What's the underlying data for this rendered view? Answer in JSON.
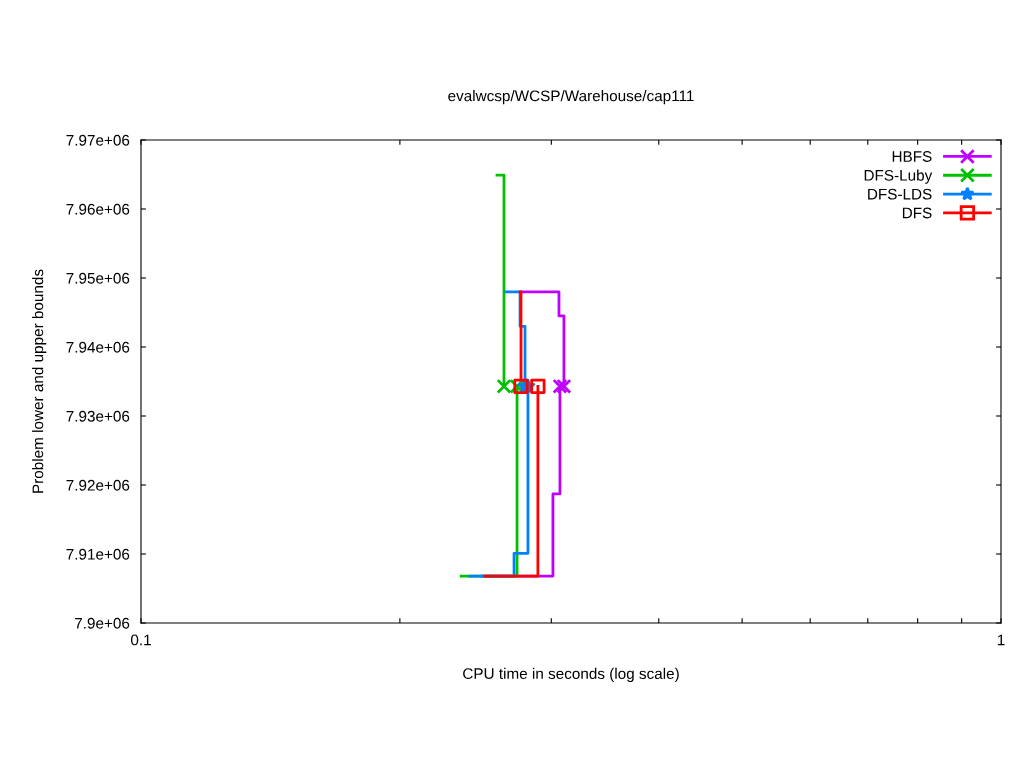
{
  "chart_data": {
    "type": "step",
    "title": "evalwcsp/WCSP/Warehouse/cap111",
    "xlabel": "CPU time in seconds (log scale)",
    "ylabel": "Problem lower and upper bounds",
    "log": "x",
    "grid": false,
    "legend": "top right",
    "line_style": "solid",
    "xlim": [
      0.1,
      1
    ],
    "xticks": [
      {
        "value": 0.1,
        "label": "0.1"
      },
      {
        "value": 0.2,
        "label": null
      },
      {
        "value": 0.3,
        "label": null
      },
      {
        "value": 0.4,
        "label": null
      },
      {
        "value": 0.5,
        "label": null
      },
      {
        "value": 0.6,
        "label": null
      },
      {
        "value": 0.7,
        "label": null
      },
      {
        "value": 0.8,
        "label": null
      },
      {
        "value": 0.9,
        "label": null
      },
      {
        "value": 1,
        "label": "1"
      }
    ],
    "ylim": [
      7900000,
      7970000
    ],
    "yticks": [
      {
        "value": 7900000,
        "label": "7.9e+06"
      },
      {
        "value": 7910000,
        "label": "7.91e+06"
      },
      {
        "value": 7920000,
        "label": "7.92e+06"
      },
      {
        "value": 7930000,
        "label": "7.93e+06"
      },
      {
        "value": 7940000,
        "label": "7.94e+06"
      },
      {
        "value": 7950000,
        "label": "7.95e+06"
      },
      {
        "value": 7960000,
        "label": "7.96e+06"
      },
      {
        "value": 7970000,
        "label": "7.97e+06"
      }
    ],
    "series": [
      {
        "color": "#c000ff",
        "x": [
          0.2773,
          0.3062,
          0.3103
        ],
        "values": [
          7948000,
          7944500,
          7934300
        ]
      },
      {
        "color": "#c000ff",
        "x": [
          0.2492,
          0.3013,
          0.307
        ],
        "values": [
          7906800,
          7918700,
          7934300
        ]
      },
      {
        "type": "scatter",
        "name": "HBFS",
        "color": "#c000ff",
        "marker": "cross",
        "x": [
          0.3103,
          0.307
        ],
        "values": [
          7934300,
          7934300
        ]
      },
      {
        "color": "#00c000",
        "x": [
          0.2594,
          0.2643
        ],
        "values": [
          7964900,
          7934300
        ]
      },
      {
        "color": "#00c000",
        "x": [
          0.2357,
          0.2737
        ],
        "values": [
          7906800,
          7934300
        ]
      },
      {
        "type": "scatter",
        "name": "DFS-Luby",
        "color": "#00c000",
        "marker": "cross",
        "x": [
          0.2643,
          0.2737
        ],
        "values": [
          7934300,
          7934300
        ]
      },
      {
        "color": "#0080ff",
        "x": [
          0.2657,
          0.2759,
          0.2796
        ],
        "values": [
          7948000,
          7943000,
          7934300
        ]
      },
      {
        "color": "#0080ff",
        "x": [
          0.2413,
          0.2715,
          0.2818
        ],
        "values": [
          7906800,
          7910100,
          7934300
        ]
      },
      {
        "type": "scatter",
        "name": "DFS-LDS",
        "color": "#0080ff",
        "marker": "star",
        "x": [
          0.2796,
          0.2818
        ],
        "values": [
          7934300,
          7934300
        ]
      },
      {
        "color": "#ff0000",
        "x": [
          0.2759,
          0.2766
        ],
        "values": [
          7948000,
          7934300
        ]
      },
      {
        "color": "#ff0000",
        "x": [
          0.2512,
          0.2894
        ],
        "values": [
          7906800,
          7934300
        ]
      },
      {
        "type": "scatter",
        "name": "DFS",
        "color": "#ff0000",
        "marker": "square",
        "x": [
          0.2766,
          0.2894
        ],
        "values": [
          7934300,
          7934300
        ]
      }
    ]
  }
}
